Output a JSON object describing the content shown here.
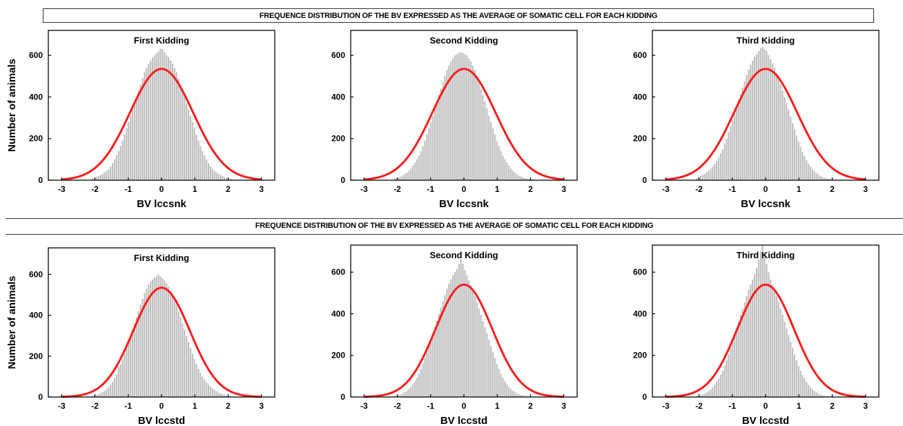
{
  "banners": {
    "top": "FREQUENCE DISTRIBUTION OF THE BV EXPRESSED AS THE AVERAGE OF SOMATIC CELL FOR EACH KIDDING",
    "bottom": "FREQUENCE DISTRIBUTION OF THE BV EXPRESSED AS THE AVERAGE OF SOMATIC CELL FOR EACH KIDDING"
  },
  "colors": {
    "bars": "#bdbdbd",
    "curve": "#ff1a1a",
    "axis": "#000000"
  },
  "chart_data": [
    {
      "type": "bar",
      "title": "First Kidding",
      "xlabel": "BV lccsnk",
      "ylabel": "Number of animals",
      "xlim": [
        -3.4,
        3.4
      ],
      "ylim": [
        0,
        720
      ],
      "xticks": [
        -3,
        -2,
        -1,
        0,
        1,
        2,
        3
      ],
      "yticks": [
        0,
        200,
        400,
        600
      ],
      "curve": {
        "type": "normal",
        "mean": 0,
        "sd": 0.95,
        "peak": 535
      },
      "bin_width": 0.06,
      "counts": [
        10,
        12,
        15,
        20,
        25,
        30,
        38,
        45,
        55,
        66,
        82,
        100,
        120,
        140,
        165,
        190,
        220,
        250,
        280,
        310,
        340,
        370,
        400,
        430,
        460,
        490,
        520,
        540,
        560,
        575,
        590,
        600,
        610,
        620,
        632,
        630,
        615,
        600,
        590,
        575,
        560,
        540,
        520,
        490,
        460,
        430,
        400,
        370,
        340,
        310,
        280,
        250,
        220,
        190,
        165,
        140,
        120,
        100,
        82,
        66,
        55,
        45,
        38,
        30,
        25,
        20,
        15,
        12,
        10,
        8
      ]
    },
    {
      "type": "bar",
      "title": "Second Kidding",
      "xlabel": "BV lccsnk",
      "ylabel": "",
      "xlim": [
        -3.4,
        3.4
      ],
      "ylim": [
        0,
        720
      ],
      "xticks": [
        -3,
        -2,
        -1,
        0,
        1,
        2,
        3
      ],
      "yticks": [
        0,
        200,
        400,
        600
      ],
      "curve": {
        "type": "normal",
        "mean": 0,
        "sd": 0.95,
        "peak": 535
      },
      "bin_width": 0.06,
      "counts": [
        8,
        10,
        14,
        18,
        22,
        30,
        36,
        45,
        56,
        70,
        85,
        100,
        118,
        140,
        165,
        190,
        220,
        250,
        280,
        310,
        345,
        380,
        410,
        440,
        470,
        500,
        530,
        550,
        570,
        585,
        600,
        605,
        612,
        615,
        612,
        605,
        600,
        585,
        570,
        550,
        530,
        500,
        470,
        440,
        410,
        380,
        345,
        310,
        280,
        250,
        220,
        190,
        165,
        140,
        118,
        100,
        85,
        70,
        56,
        45,
        36,
        30,
        22,
        18,
        14,
        10,
        8,
        6,
        5,
        4
      ]
    },
    {
      "type": "bar",
      "title": "Third Kidding",
      "xlabel": "BV lccsnk",
      "ylabel": "",
      "xlim": [
        -3.4,
        3.4
      ],
      "ylim": [
        0,
        720
      ],
      "xticks": [
        -3,
        -2,
        -1,
        0,
        1,
        2,
        3
      ],
      "yticks": [
        0,
        200,
        400,
        600
      ],
      "curve": {
        "type": "normal",
        "mean": 0,
        "sd": 0.95,
        "peak": 535
      },
      "bin_width": 0.06,
      "counts": [
        10,
        14,
        20,
        26,
        30,
        38,
        45,
        55,
        66,
        78,
        92,
        110,
        130,
        150,
        175,
        200,
        230,
        260,
        290,
        320,
        355,
        385,
        415,
        445,
        475,
        505,
        530,
        555,
        575,
        595,
        605,
        620,
        635,
        640,
        630,
        620,
        600,
        580,
        560,
        540,
        515,
        490,
        460,
        430,
        400,
        370,
        340,
        305,
        275,
        245,
        215,
        185,
        160,
        135,
        115,
        95,
        78,
        64,
        52,
        42,
        34,
        26,
        20,
        15,
        12,
        9,
        7,
        5,
        4,
        3
      ]
    },
    {
      "type": "bar",
      "title": "First Kidding",
      "xlabel": "BV lccstd",
      "ylabel": "Number of animals",
      "xlim": [
        -3.4,
        3.4
      ],
      "ylim": [
        0,
        730
      ],
      "xticks": [
        -3,
        -2,
        -1,
        0,
        1,
        2,
        3
      ],
      "yticks": [
        0,
        200,
        400,
        600
      ],
      "curve": {
        "type": "normal",
        "mean": 0,
        "sd": 0.85,
        "peak": 535
      },
      "bin_width": 0.06,
      "counts": [
        6,
        8,
        10,
        14,
        18,
        24,
        30,
        38,
        48,
        60,
        75,
        92,
        110,
        150,
        160,
        185,
        210,
        240,
        270,
        300,
        330,
        360,
        390,
        420,
        450,
        480,
        510,
        530,
        550,
        565,
        575,
        585,
        590,
        600,
        590,
        580,
        570,
        555,
        540,
        520,
        500,
        475,
        450,
        420,
        390,
        360,
        330,
        300,
        270,
        240,
        210,
        185,
        160,
        138,
        118,
        100,
        85,
        72,
        60,
        50,
        42,
        35,
        28,
        22,
        18,
        14,
        10,
        8,
        6,
        5
      ]
    },
    {
      "type": "bar",
      "title": "Second Kidding",
      "xlabel": "BV lccstd",
      "ylabel": "",
      "xlim": [
        -3.4,
        3.4
      ],
      "ylim": [
        0,
        730
      ],
      "xticks": [
        -3,
        -2,
        -1,
        0,
        1,
        2,
        3
      ],
      "yticks": [
        0,
        200,
        400,
        600
      ],
      "curve": {
        "type": "normal",
        "mean": 0,
        "sd": 0.85,
        "peak": 540
      },
      "bin_width": 0.06,
      "counts": [
        5,
        7,
        10,
        14,
        18,
        24,
        30,
        38,
        48,
        60,
        75,
        92,
        112,
        135,
        160,
        188,
        215,
        245,
        275,
        305,
        335,
        365,
        400,
        430,
        460,
        490,
        520,
        545,
        565,
        585,
        600,
        615,
        640,
        662,
        640,
        610,
        585,
        560,
        535,
        510,
        485,
        455,
        425,
        395,
        365,
        335,
        305,
        275,
        245,
        215,
        188,
        160,
        135,
        112,
        92,
        75,
        60,
        48,
        38,
        30,
        24,
        18,
        14,
        10,
        7,
        5,
        4,
        3,
        2,
        2
      ]
    },
    {
      "type": "bar",
      "title": "Third  Kidding",
      "xlabel": "BV lccstd",
      "ylabel": "",
      "xlim": [
        -3.4,
        3.4
      ],
      "ylim": [
        0,
        730
      ],
      "xticks": [
        -3,
        -2,
        -1,
        0,
        1,
        2,
        3
      ],
      "yticks": [
        0,
        200,
        400,
        600
      ],
      "curve": {
        "type": "normal",
        "mean": 0,
        "sd": 0.85,
        "peak": 540
      },
      "bin_width": 0.06,
      "counts": [
        4,
        6,
        8,
        12,
        16,
        22,
        28,
        36,
        46,
        58,
        72,
        88,
        106,
        126,
        150,
        176,
        205,
        235,
        265,
        298,
        330,
        362,
        395,
        425,
        455,
        485,
        515,
        540,
        565,
        590,
        620,
        660,
        700,
        740,
        690,
        640,
        600,
        565,
        540,
        515,
        485,
        455,
        425,
        395,
        362,
        330,
        298,
        265,
        235,
        205,
        176,
        150,
        126,
        106,
        88,
        72,
        58,
        46,
        36,
        28,
        22,
        16,
        12,
        8,
        6,
        4,
        3,
        2,
        2,
        1
      ]
    }
  ]
}
